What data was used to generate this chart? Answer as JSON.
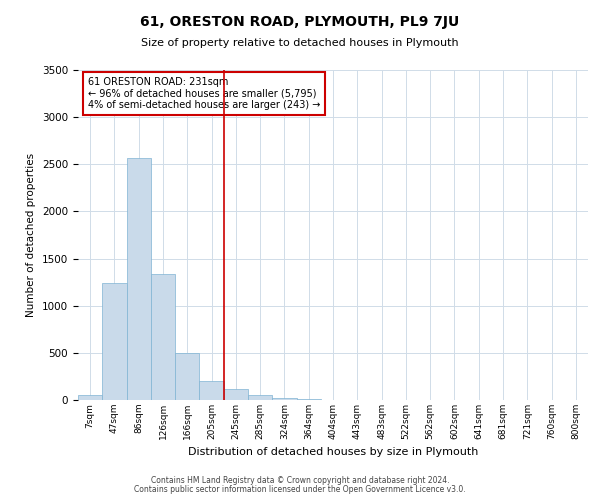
{
  "title": "61, ORESTON ROAD, PLYMOUTH, PL9 7JU",
  "subtitle": "Size of property relative to detached houses in Plymouth",
  "xlabel": "Distribution of detached houses by size in Plymouth",
  "ylabel": "Number of detached properties",
  "bar_labels": [
    "7sqm",
    "47sqm",
    "86sqm",
    "126sqm",
    "166sqm",
    "205sqm",
    "245sqm",
    "285sqm",
    "324sqm",
    "364sqm",
    "404sqm",
    "443sqm",
    "483sqm",
    "522sqm",
    "562sqm",
    "602sqm",
    "641sqm",
    "681sqm",
    "721sqm",
    "760sqm",
    "800sqm"
  ],
  "bar_values": [
    50,
    1240,
    2570,
    1340,
    500,
    200,
    115,
    55,
    25,
    10,
    5,
    2,
    0,
    0,
    0,
    0,
    0,
    0,
    0,
    0,
    0
  ],
  "bar_color": "#c9daea",
  "bar_edge_color": "#7fb3d3",
  "annotation_line1": "61 ORESTON ROAD: 231sqm",
  "annotation_line2": "← 96% of detached houses are smaller (5,795)",
  "annotation_line3": "4% of semi-detached houses are larger (243) →",
  "annotation_box_edge_color": "#cc0000",
  "vline_x_index": 5.5,
  "vline_color": "#cc0000",
  "ylim": [
    0,
    3500
  ],
  "yticks": [
    0,
    500,
    1000,
    1500,
    2000,
    2500,
    3000,
    3500
  ],
  "footer_line1": "Contains HM Land Registry data © Crown copyright and database right 2024.",
  "footer_line2": "Contains public sector information licensed under the Open Government Licence v3.0.",
  "background_color": "#ffffff",
  "grid_color": "#d0dce8"
}
